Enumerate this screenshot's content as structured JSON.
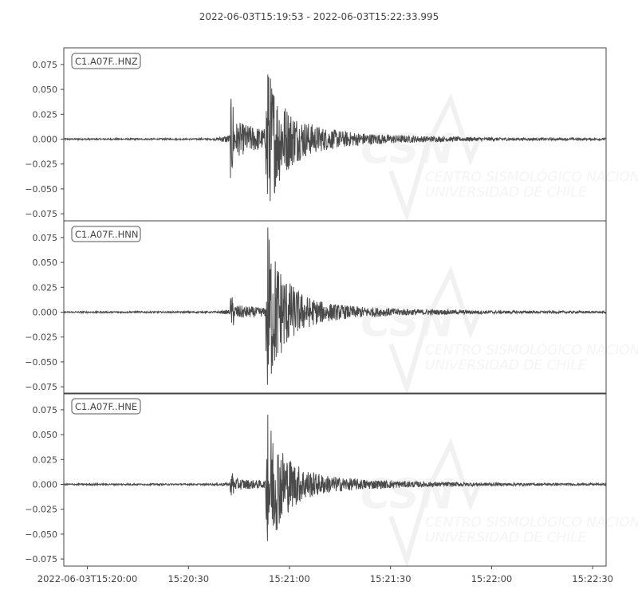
{
  "chart_data": {
    "type": "line",
    "title": "2022-06-03T15:19:53  -  2022-06-03T15:22:33.995",
    "xlim": [
      "2022-06-03T15:19:53",
      "2022-06-03T15:22:33.995"
    ],
    "ylim": [
      -0.08,
      0.08
    ],
    "x_ticks": [
      "2022-06-03T15:20:00",
      "15:20:30",
      "15:21:00",
      "15:21:30",
      "15:22:00",
      "15:22:30"
    ],
    "y_ticks": [
      "0.075",
      "0.050",
      "0.025",
      "0.000",
      "−0.025",
      "−0.050",
      "−0.075"
    ],
    "line_color": "#4a4a4a",
    "watermark": {
      "logo": "CSN",
      "line1": "CENTRO SISMOLÓGICO NACIONAL",
      "line2": "UNIVERSIDAD DE CHILE"
    },
    "series": [
      {
        "name": "C1.A07F..HNZ",
        "p_arrival_s": 49.4,
        "s_arrival_s": 60.5,
        "p_peak": 0.04,
        "max": 0.065,
        "min": -0.055,
        "noise": 0.0008
      },
      {
        "name": "C1.A07F..HNN",
        "p_arrival_s": 49.4,
        "s_arrival_s": 60.5,
        "p_peak": 0.015,
        "max": 0.085,
        "min": -0.073,
        "noise": 0.0008
      },
      {
        "name": "C1.A07F..HNE",
        "p_arrival_s": 49.4,
        "s_arrival_s": 60.5,
        "p_peak": 0.012,
        "max": 0.07,
        "min": -0.057,
        "noise": 0.0008
      }
    ]
  }
}
